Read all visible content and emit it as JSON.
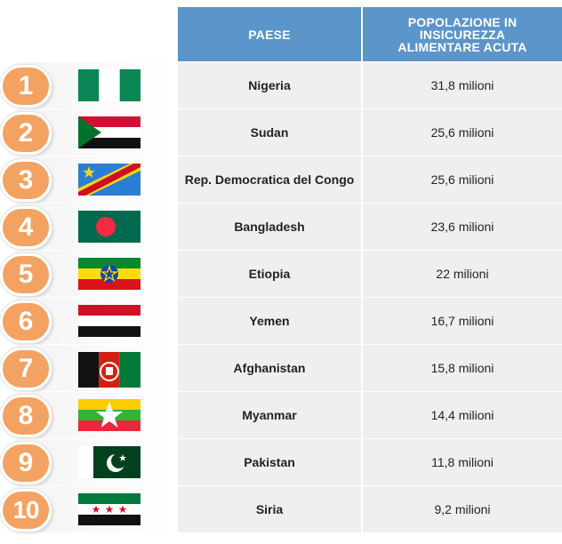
{
  "header": {
    "country": "PAESE",
    "population": "POPOLAZIONE IN INSICUREZZA ALIMENTARE ACUTA"
  },
  "rows": [
    {
      "rank": "1",
      "country": "Nigeria",
      "population": "31,8 milioni",
      "flag_icon": "nigeria-flag"
    },
    {
      "rank": "2",
      "country": "Sudan",
      "population": "25,6 milioni",
      "flag_icon": "sudan-flag"
    },
    {
      "rank": "3",
      "country": "Rep. Democratica del Congo",
      "population": "25,6 milioni",
      "flag_icon": "dr-congo-flag"
    },
    {
      "rank": "4",
      "country": "Bangladesh",
      "population": "23,6 milioni",
      "flag_icon": "bangladesh-flag"
    },
    {
      "rank": "5",
      "country": "Etiopia",
      "population": "22 milioni",
      "flag_icon": "ethiopia-flag"
    },
    {
      "rank": "6",
      "country": "Yemen",
      "population": "16,7 milioni",
      "flag_icon": "yemen-flag"
    },
    {
      "rank": "7",
      "country": "Afghanistan",
      "population": "15,8 milioni",
      "flag_icon": "afghanistan-flag"
    },
    {
      "rank": "8",
      "country": "Myanmar",
      "population": "14,4 milioni",
      "flag_icon": "myanmar-flag"
    },
    {
      "rank": "9",
      "country": "Pakistan",
      "population": "11,8 milioni",
      "flag_icon": "pakistan-flag"
    },
    {
      "rank": "10",
      "country": "Siria",
      "population": "9,2 milioni",
      "flag_icon": "syria-flag"
    }
  ],
  "colors": {
    "header_bg": "#5b95c9",
    "badge_bg": "#f4a261",
    "cell_bg": "#efefef"
  }
}
